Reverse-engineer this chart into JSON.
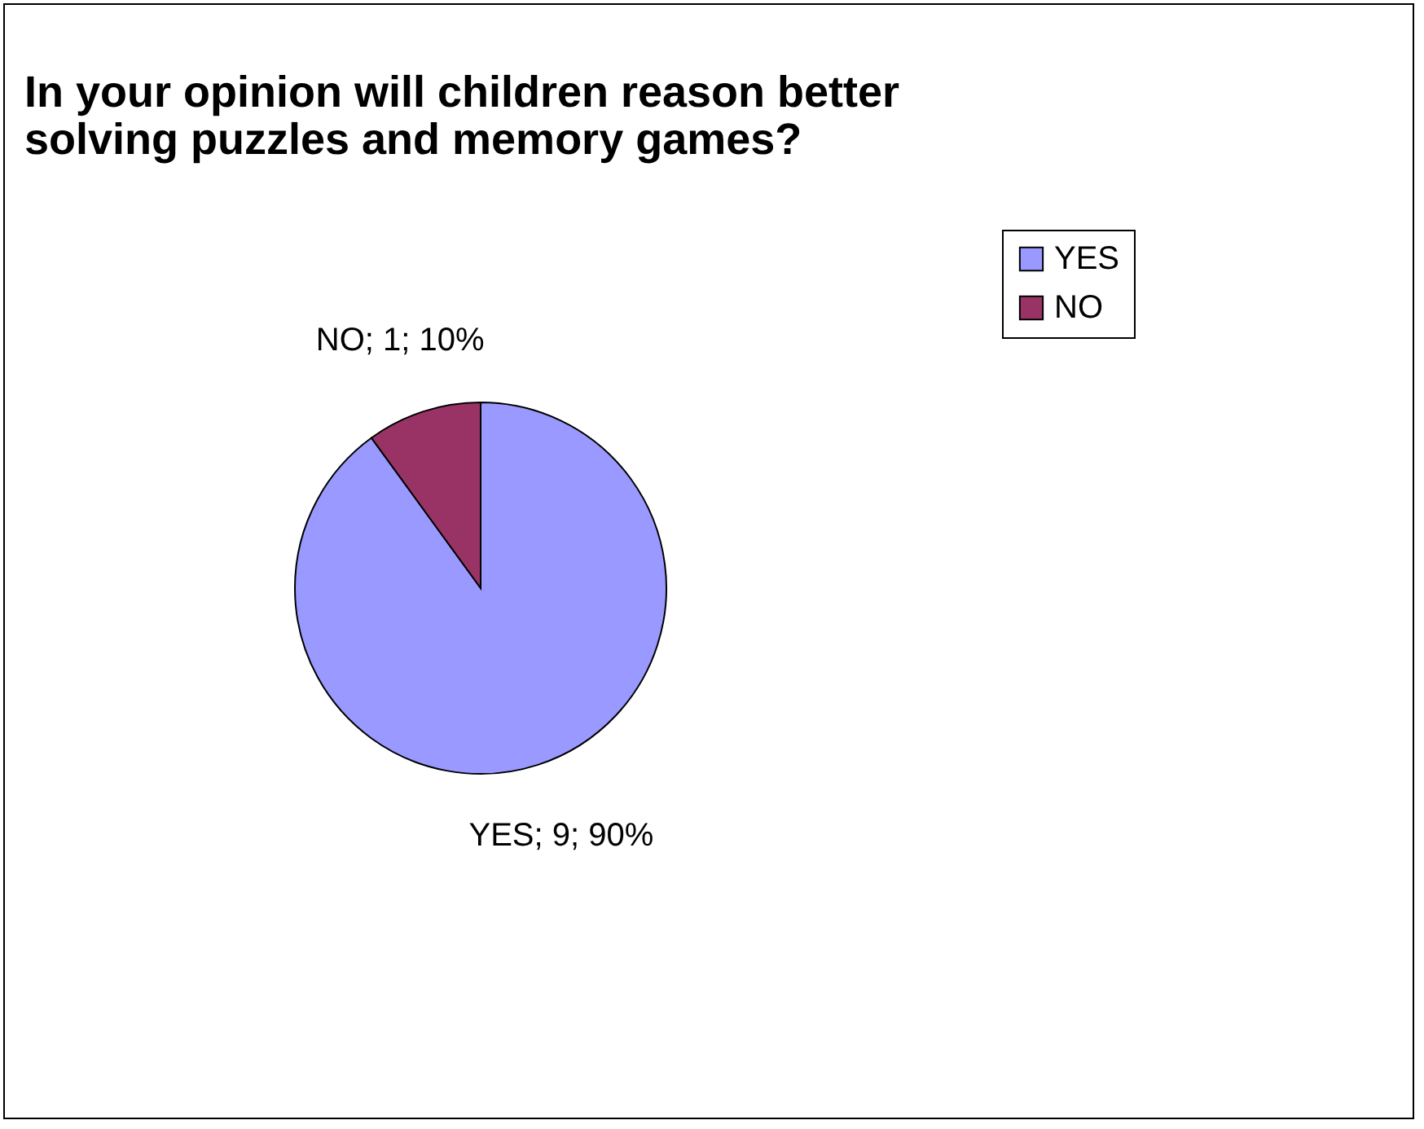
{
  "chart_data": {
    "type": "pie",
    "title": "In your opinion will children reason better solving puzzles and memory games?",
    "categories": [
      "YES",
      "NO"
    ],
    "values": [
      9,
      1
    ],
    "colors": [
      "#9999ff",
      "#993366"
    ],
    "value_labels": [
      "YES; 9; 90%",
      "NO; 1; 10%"
    ],
    "legend": "right"
  }
}
